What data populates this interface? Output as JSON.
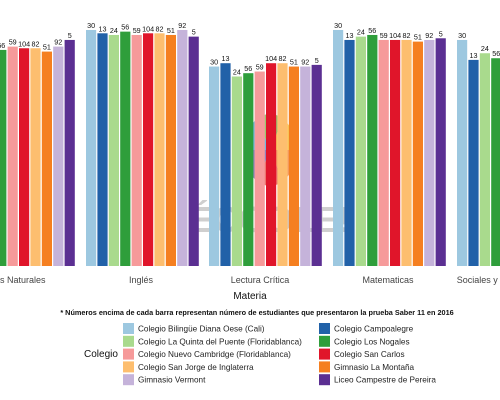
{
  "chart_data": {
    "type": "bar",
    "xlabel": "Materia",
    "ylabel": "",
    "note": "* Números encima de cada barra representan número de estudiantes que presentaron la prueba Saber 11 en 2016",
    "watermark": "ÉCCOLE!",
    "categories": [
      "Ciencias Naturales",
      "Inglés",
      "Lectura Crítica",
      "Matematicas",
      "Sociales y Ciudadanas"
    ],
    "category_labels_visible": [
      "cias Naturales",
      "Inglés",
      "Lectura Crítica",
      "Matematicas",
      "Sociales y Com"
    ],
    "legend_title": "Colegio",
    "legend_position": "bottom",
    "series": [
      {
        "name": "Colegio Bilingüe Diana Oese (Cali)",
        "color": "#9dc8e0",
        "labels": [
          "30",
          "30",
          "30",
          "30",
          "30"
        ],
        "values": [
          66.5,
          71,
          60,
          71,
          68
        ]
      },
      {
        "name": "Colegio Campoalegre",
        "color": "#2161a8",
        "labels": [
          "13",
          "13",
          "13",
          "13",
          "13"
        ],
        "values": [
          66,
          70,
          61,
          68,
          62
        ]
      },
      {
        "name": "Colegio La Quinta del Puente (Floridablanca)",
        "color": "#a9da8d",
        "labels": [
          "24",
          "24",
          "24",
          "24",
          "24"
        ],
        "values": [
          65.5,
          69.5,
          57,
          69,
          64
        ]
      },
      {
        "name": "Colegio Los Nogales",
        "color": "#2f9e3b",
        "labels": [
          "56",
          "56",
          "56",
          "56",
          "56"
        ],
        "values": [
          65,
          70.5,
          58,
          69.5,
          62.5
        ]
      },
      {
        "name": "Colegio Nuevo Cambridge (Floridablanca)",
        "color": "#f69a9a",
        "labels": [
          "59",
          "59",
          "59",
          "59",
          "59"
        ],
        "values": [
          66,
          69.5,
          58.5,
          68,
          62
        ]
      },
      {
        "name": "Colegio San Carlos",
        "color": "#e0152a",
        "labels": [
          "104",
          "104",
          "104",
          "104",
          "104"
        ],
        "values": [
          65.5,
          70,
          61,
          68,
          60
        ]
      },
      {
        "name": "Colegio San Jorge de Inglaterra",
        "color": "#fdbe6f",
        "labels": [
          "82",
          "82",
          "82",
          "82",
          "82"
        ],
        "values": [
          65.5,
          70,
          61,
          68,
          60
        ]
      },
      {
        "name": "Gimnasio La Montaña",
        "color": "#f57f20",
        "labels": [
          "51",
          "51",
          "51",
          "51",
          "51"
        ],
        "values": [
          64.5,
          69.5,
          60,
          67.5,
          60
        ]
      },
      {
        "name": "Gimnasio Vermont",
        "color": "#c5b3da",
        "labels": [
          "92",
          "92",
          "92",
          "92",
          "92"
        ],
        "values": [
          66,
          71,
          60,
          68,
          60
        ]
      },
      {
        "name": "Liceo Campestre de Pereira",
        "color": "#5b2f92",
        "labels": [
          "5",
          "5",
          "5",
          "5",
          "5"
        ],
        "values": [
          68,
          69,
          60.5,
          68.5,
          61
        ]
      }
    ],
    "ylim": [
      0,
      74
    ],
    "grid": false
  }
}
